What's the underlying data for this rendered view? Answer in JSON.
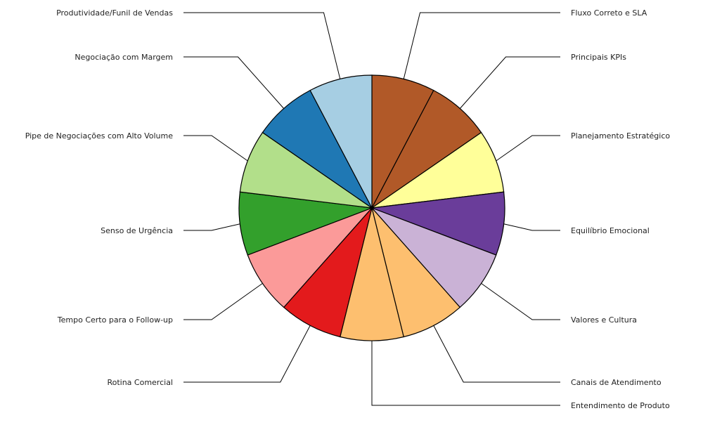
{
  "chart_data": {
    "type": "pie",
    "title": "",
    "start": "top",
    "direction": "clockwise",
    "slices": [
      {
        "label": "Fluxo Correto e SLA",
        "value": 1,
        "color": "#b15928"
      },
      {
        "label": "Principais KPIs",
        "value": 1,
        "color": "#b15928"
      },
      {
        "label": "Planejamento Estratégico",
        "value": 1,
        "color": "#ffff99"
      },
      {
        "label": "Equilíbrio Emocional",
        "value": 1,
        "color": "#6a3d9a"
      },
      {
        "label": "Valores e Cultura",
        "value": 1,
        "color": "#cab2d6"
      },
      {
        "label": "Canais de Atendimento",
        "value": 1,
        "color": "#fdbf6f"
      },
      {
        "label": "Entendimento de Produto",
        "value": 1,
        "color": "#fdbf6f"
      },
      {
        "label": "Rotina Comercial",
        "value": 1,
        "color": "#e31a1c"
      },
      {
        "label": "Tempo Certo para o Follow-up",
        "value": 1,
        "color": "#fb9a99"
      },
      {
        "label": "Senso de Urgência",
        "value": 1,
        "color": "#33a02c"
      },
      {
        "label": "Pipe de Negociações com Alto Volume",
        "value": 1,
        "color": "#b2df8a"
      },
      {
        "label": "Negociação com Margem",
        "value": 1,
        "color": "#1f78b4"
      },
      {
        "label": "Produtividade/Funil de Vendas",
        "value": 1,
        "color": "#a6cee3"
      }
    ]
  }
}
